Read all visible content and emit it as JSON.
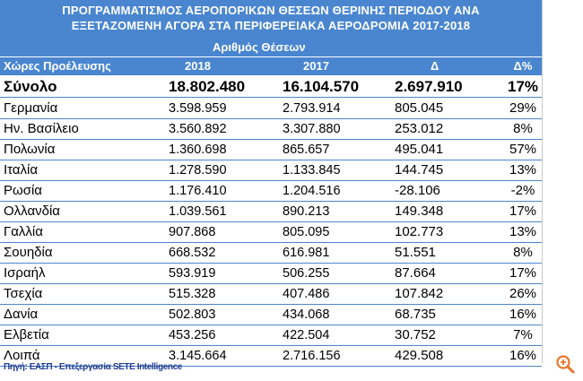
{
  "title": {
    "line1": "ΠΡΟΓΡΑΜΜΑΤΙΣΜΟΣ ΑΕΡΟΠΟΡΙΚΩΝ ΘΕΣΕΩΝ ΘΕΡΙΝΗΣ ΠΕΡΙΟΔΟΥ ΑΝΑ",
    "line2": "ΕΞΕΤΑΖΟΜΕΝΗ ΑΓΟΡΑ ΣΤΑ ΠΕΡΙΦΕΡΕΙΑΚΑ ΑΕΡΟΔΡΟΜΙΑ 2017-2018"
  },
  "subtitle": "Αριθμός Θέσεων",
  "headers": [
    "Χώρες Προέλευσης",
    "2018",
    "2017",
    "Δ",
    "Δ%"
  ],
  "total": [
    "Σύνολο",
    "18.802.480",
    "16.104.570",
    "2.697.910",
    "17%"
  ],
  "rows": [
    [
      "Γερμανία",
      "3.598.959",
      "2.793.914",
      "805.045",
      "29%"
    ],
    [
      "Ην. Βασίλειο",
      "3.560.892",
      "3.307.880",
      "253.012",
      "8%"
    ],
    [
      "Πολωνία",
      "1.360.698",
      "865.657",
      "495.041",
      "57%"
    ],
    [
      "Ιταλία",
      "1.278.590",
      "1.133.845",
      "144.745",
      "13%"
    ],
    [
      "Ρωσία",
      "1.176.410",
      "1.204.516",
      "-28.106",
      "-2%"
    ],
    [
      "Ολλανδία",
      "1.039.561",
      "890.213",
      "149.348",
      "17%"
    ],
    [
      "Γαλλία",
      "907.868",
      "805.095",
      "102.773",
      "13%"
    ],
    [
      "Σουηδία",
      "668.532",
      "616.981",
      "51.551",
      "8%"
    ],
    [
      "Ισραήλ",
      "593.919",
      "506.255",
      "87.664",
      "17%"
    ],
    [
      "Τσεχία",
      "515.328",
      "407.486",
      "107.842",
      "26%"
    ],
    [
      "Δανία",
      "502.803",
      "434.068",
      "68.735",
      "16%"
    ],
    [
      "Ελβετία",
      "453.256",
      "422.504",
      "30.752",
      "7%"
    ],
    [
      "Λοιπά",
      "3.145.664",
      "2.716.156",
      "429.508",
      "16%"
    ]
  ],
  "source": "Πηγή: ΕΑΣΠ - Επεξεργασία SETE Intelligence",
  "icons": {
    "zoom": "zoom-in-icon"
  },
  "colors": {
    "header_bg": "#4a86cf",
    "header_text": "#ffffff",
    "source_text": "#1f3b8f",
    "zoom_icon": "#e8762c"
  }
}
